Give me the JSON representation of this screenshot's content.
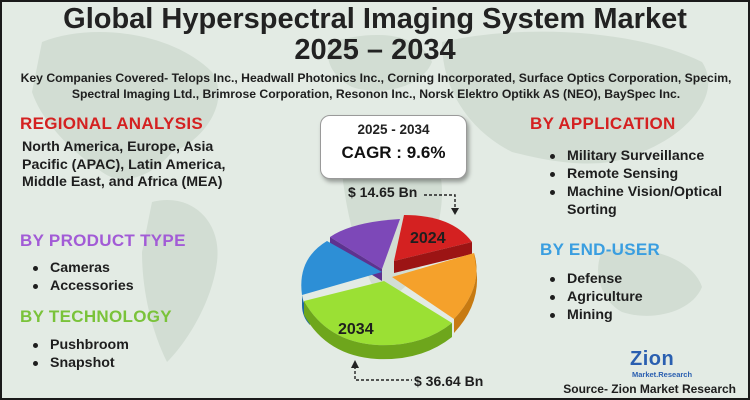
{
  "title_line1": "Global Hyperspectral Imaging System Market",
  "title_line2": "2025 – 2034",
  "companies_text": "Key Companies Covered- Telops Inc., Headwall Photonics Inc., Corning Incorporated, Surface Optics Corporation, Specim, Spectral Imaging Ltd., Brimrose Corporation, Resonon Inc., Norsk Elektro Optikk AS (NEO), BaySpec Inc.",
  "regional": {
    "heading": "REGIONAL ANALYSIS",
    "text": "North America, Europe, Asia Pacific (APAC), Latin America, Middle East, and Africa (MEA)"
  },
  "product_type": {
    "heading": "BY PRODUCT TYPE",
    "items": [
      "Cameras",
      "Accessories"
    ]
  },
  "technology": {
    "heading": "BY TECHNOLOGY",
    "items": [
      "Pushbroom",
      "Snapshot"
    ]
  },
  "application": {
    "heading": "BY APPLICATION",
    "items": [
      "Military Surveillance",
      "Remote Sensing",
      "Machine Vision/Optical Sorting"
    ]
  },
  "end_user": {
    "heading": "BY END-USER",
    "items": [
      "Defense",
      "Agriculture",
      "Mining"
    ]
  },
  "cagr": {
    "range": "2025 - 2034",
    "value": "CAGR : 9.6%"
  },
  "market_2024": {
    "year": "2024",
    "value": "$ 14.65 Bn"
  },
  "market_2034": {
    "year": "2034",
    "value": "$ 36.64 Bn"
  },
  "source": "Source- Zion Market Research",
  "logo": {
    "main": "Zion",
    "sub": "Market.Research"
  },
  "colors": {
    "red": "#d42121",
    "purple": "#a25bd6",
    "green": "#7ac33a",
    "blue": "#3a9ee0",
    "orange": "#f5a12b",
    "lime": "#9be034"
  }
}
